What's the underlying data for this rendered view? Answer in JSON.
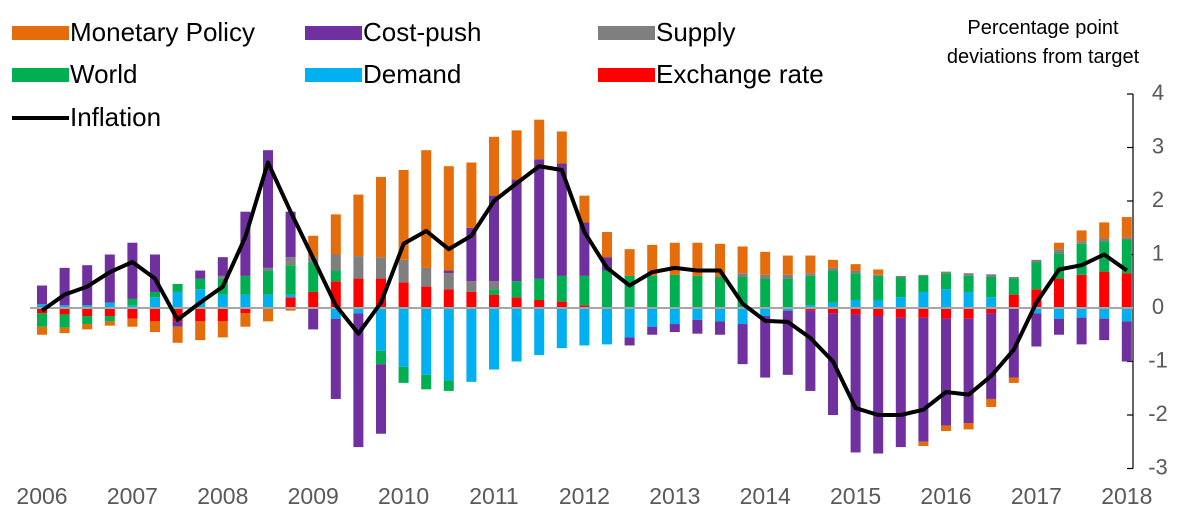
{
  "chart_data": {
    "type": "bar",
    "stacked": true,
    "y_label": "Percentage point deviations from target",
    "categories": [
      "2006",
      null,
      null,
      null,
      "2007",
      null,
      null,
      null,
      "2008",
      null,
      null,
      null,
      "2009",
      null,
      null,
      null,
      "2010",
      null,
      null,
      null,
      "2011",
      null,
      null,
      null,
      "2012",
      null,
      null,
      null,
      "2013",
      null,
      null,
      null,
      "2014",
      null,
      null,
      null,
      "2015",
      null,
      null,
      null,
      "2016",
      null,
      null,
      null,
      "2017",
      null,
      null,
      null,
      "2018"
    ],
    "ylim": [
      -3,
      4
    ],
    "yticks": [
      -3,
      -2,
      -1,
      0,
      1,
      2,
      3,
      4
    ],
    "legend": "top-left",
    "series": [
      {
        "name": "Monetary Policy",
        "color": "#E46C0A",
        "values": [
          -0.15,
          -0.1,
          -0.1,
          -0.08,
          -0.15,
          -0.2,
          -0.3,
          -0.35,
          -0.3,
          -0.25,
          -0.25,
          -0.05,
          0.4,
          0.75,
          1.15,
          1.5,
          1.68,
          2.2,
          1.95,
          1.22,
          1.1,
          0.92,
          0.74,
          0.6,
          0.5,
          0.47,
          0.5,
          0.58,
          0.6,
          0.62,
          0.62,
          0.5,
          0.43,
          0.36,
          0.33,
          0.15,
          0.12,
          0.1,
          0,
          -0.08,
          -0.1,
          -0.12,
          -0.15,
          -0.1,
          0,
          0.12,
          0.2,
          0.3,
          0.38
        ]
      },
      {
        "name": "Cost-push",
        "color": "#7030A0",
        "values": [
          0.35,
          0.7,
          0.75,
          0.9,
          1.05,
          0.7,
          -0.1,
          0.15,
          0.35,
          1.2,
          2.2,
          0.85,
          -0.4,
          -1.5,
          -2.5,
          -1.3,
          0,
          0,
          0.05,
          1.0,
          1.6,
          1.9,
          2.23,
          2.1,
          1.0,
          0.25,
          -0.15,
          -0.15,
          -0.15,
          -0.26,
          -0.25,
          -0.75,
          -1.15,
          -1.2,
          -1.5,
          -1.9,
          -2.58,
          -2.57,
          -2.42,
          -2.32,
          -2.0,
          -1.95,
          -1.6,
          -1.3,
          -0.62,
          -0.3,
          -0.5,
          -0.4,
          -0.75
        ]
      },
      {
        "name": "Supply",
        "color": "#7F7F7F",
        "values": [
          0,
          0,
          0,
          0,
          0,
          0,
          0,
          0,
          0.05,
          0,
          0.05,
          0.15,
          0.1,
          0.3,
          0.42,
          0.4,
          0.42,
          0.35,
          0.3,
          0.2,
          0.15,
          0,
          0,
          0,
          0,
          0,
          0,
          0,
          0,
          0,
          0,
          0.07,
          0.07,
          0.07,
          0.05,
          0.05,
          0.05,
          0.02,
          0.03,
          0.02,
          0.03,
          0.05,
          0.05,
          0.03,
          0.05,
          0.08,
          0.05,
          0.05,
          0.04
        ]
      },
      {
        "name": "World",
        "color": "#00B050",
        "values": [
          -0.25,
          -0.25,
          -0.15,
          -0.1,
          0.12,
          0.1,
          0.15,
          0.2,
          0.3,
          0.35,
          0.45,
          0.55,
          0.55,
          0.2,
          0,
          -0.25,
          -0.3,
          -0.27,
          -0.2,
          0,
          0.1,
          0.3,
          0.4,
          0.48,
          0.55,
          0.7,
          0.6,
          0.6,
          0.62,
          0.6,
          0.58,
          0.58,
          0.55,
          0.55,
          0.55,
          0.6,
          0.5,
          0.45,
          0.37,
          0.3,
          0.3,
          0.3,
          0.38,
          0.3,
          0.5,
          0.47,
          0.58,
          0.57,
          0.63
        ]
      },
      {
        "name": "Demand",
        "color": "#00B0F0",
        "values": [
          0.07,
          0.05,
          0.05,
          0.1,
          0.05,
          0.2,
          0.3,
          0.35,
          0.25,
          0.25,
          0.25,
          0.05,
          0,
          -0.2,
          -0.1,
          -0.8,
          -1.1,
          -1.25,
          -1.35,
          -1.38,
          -1.15,
          -1.0,
          -0.88,
          -0.75,
          -0.7,
          -0.68,
          -0.55,
          -0.35,
          -0.3,
          -0.22,
          -0.25,
          -0.3,
          -0.15,
          -0.05,
          0.05,
          0.1,
          0.15,
          0.15,
          0.2,
          0.3,
          0.35,
          0.3,
          0.2,
          0,
          -0.1,
          -0.2,
          -0.18,
          -0.2,
          -0.25
        ]
      },
      {
        "name": "Exchange rate",
        "color": "#FF0000",
        "values": [
          -0.1,
          -0.12,
          -0.15,
          -0.15,
          -0.2,
          -0.25,
          -0.25,
          -0.25,
          -0.25,
          -0.1,
          0,
          0.2,
          0.3,
          0.5,
          0.55,
          0.55,
          0.48,
          0.4,
          0.35,
          0.3,
          0.25,
          0.2,
          0.15,
          0.12,
          0.05,
          0,
          0,
          0,
          0,
          0,
          0,
          0,
          0,
          0,
          -0.05,
          -0.1,
          -0.12,
          -0.15,
          -0.18,
          -0.18,
          -0.2,
          -0.2,
          -0.1,
          0.25,
          0.35,
          0.55,
          0.62,
          0.68,
          0.65
        ]
      },
      {
        "name": "Inflation",
        "type": "line",
        "color": "#000000",
        "values": [
          -0.05,
          0.25,
          0.4,
          0.67,
          0.86,
          0.55,
          -0.22,
          0.1,
          0.4,
          1.33,
          2.72,
          1.8,
          0.93,
          0.05,
          -0.48,
          0.1,
          1.2,
          1.44,
          1.1,
          1.35,
          2.0,
          2.33,
          2.65,
          2.58,
          1.42,
          0.75,
          0.42,
          0.67,
          0.75,
          0.7,
          0.7,
          0.08,
          -0.24,
          -0.26,
          -0.56,
          -1.0,
          -1.87,
          -2.0,
          -2.0,
          -1.9,
          -1.57,
          -1.62,
          -1.27,
          -0.78,
          0.1,
          0.72,
          0.8,
          1.0,
          0.7
        ]
      }
    ]
  }
}
